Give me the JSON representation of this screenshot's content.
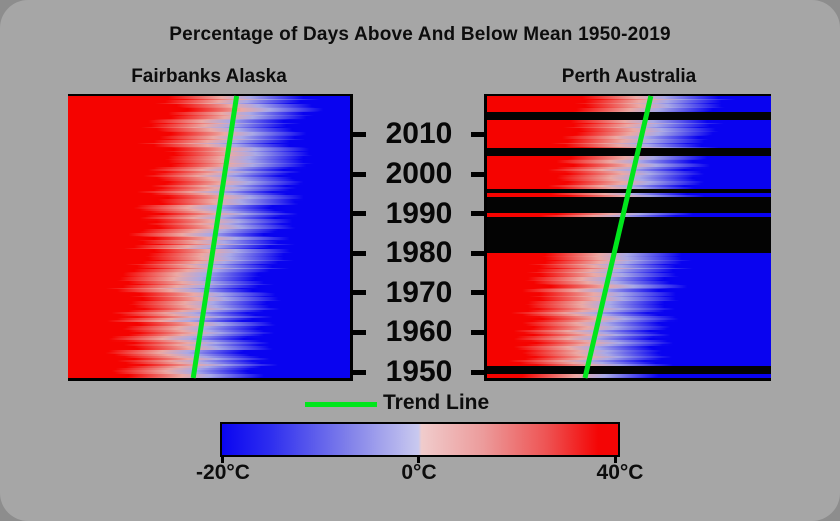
{
  "title": "Percentage of Days Above And Below Mean 1950-2019",
  "panels": [
    {
      "id": "fairbanks",
      "label": "Fairbanks Alaska"
    },
    {
      "id": "perth",
      "label": "Perth Australia"
    }
  ],
  "legend": {
    "trend_label": "Trend Line"
  },
  "colorbar": {
    "labels": [
      "-20°C",
      "0°C",
      "40°C"
    ]
  },
  "colors": {
    "hot": "#f50300",
    "cold": "#0903f0",
    "hot_pale": "#eba9a4",
    "cold_pale": "#a9a9e6",
    "missing_row": "#030303",
    "trend": "#00e61c",
    "axis": "#000000",
    "colorbar_left": "#0a05f1",
    "colorbar_right": "#f40505",
    "background": "#a6a6a6"
  },
  "chart_data": {
    "type": "heatmap",
    "title": "Percentage of Days Above And Below Mean 1950-2019",
    "y_axis": "year",
    "year_top": 2019,
    "year_bottom": 1950,
    "y_ticks": [
      2010,
      2000,
      1990,
      1980,
      1970,
      1960,
      1950
    ],
    "x_meaning": "each row: fraction of days above mean (red, left) vs below mean (blue, right); crossover value = estimated fraction of days above mean",
    "legend": {
      "trend_label": "Trend Line"
    },
    "colorbar": {
      "tick_labels": [
        "-20°C",
        "0°C",
        "40°C"
      ],
      "min": -20,
      "mid": 0,
      "max": 40,
      "unit": "°C"
    },
    "series": [
      {
        "name": "Fairbanks Alaska",
        "order": "2019_down_to_1950",
        "missing_years": [],
        "trend": {
          "top_fraction": 0.598,
          "bottom_fraction": 0.444
        },
        "values": [
          0.62,
          0.57,
          0.63,
          0.66,
          0.61,
          0.58,
          0.55,
          0.52,
          0.56,
          0.6,
          0.58,
          0.52,
          0.57,
          0.6,
          0.62,
          0.59,
          0.61,
          0.58,
          0.55,
          0.53,
          0.56,
          0.59,
          0.55,
          0.52,
          0.56,
          0.58,
          0.57,
          0.48,
          0.51,
          0.55,
          0.52,
          0.54,
          0.56,
          0.5,
          0.47,
          0.52,
          0.53,
          0.46,
          0.55,
          0.52,
          0.54,
          0.48,
          0.51,
          0.46,
          0.44,
          0.42,
          0.47,
          0.41,
          0.44,
          0.48,
          0.51,
          0.46,
          0.49,
          0.43,
          0.45,
          0.4,
          0.49,
          0.44,
          0.47,
          0.43,
          0.41,
          0.46,
          0.48,
          0.38,
          0.42,
          0.45,
          0.47,
          0.43,
          0.4,
          0.45
        ]
      },
      {
        "name": "Perth Australia",
        "order": "2019_down_to_1950",
        "missing_years": [
          2015,
          2014,
          2006,
          2005,
          1996,
          1994,
          1993,
          1992,
          1991,
          1989,
          1988,
          1987,
          1986,
          1985,
          1984,
          1983,
          1982,
          1981,
          1952,
          1951
        ],
        "trend": {
          "top_fraction": 0.577,
          "bottom_fraction": 0.345
        },
        "values": [
          0.6,
          0.57,
          0.59,
          0.55,
          null,
          null,
          0.56,
          0.53,
          0.57,
          0.55,
          0.52,
          0.5,
          0.54,
          null,
          null,
          0.53,
          0.5,
          0.52,
          0.48,
          0.51,
          0.49,
          0.52,
          0.47,
          null,
          0.49,
          null,
          null,
          null,
          null,
          0.46,
          null,
          null,
          null,
          null,
          null,
          null,
          null,
          null,
          null,
          0.44,
          0.46,
          0.42,
          0.45,
          0.4,
          0.43,
          0.38,
          0.42,
          0.44,
          0.39,
          0.41,
          0.43,
          0.38,
          0.4,
          0.36,
          0.39,
          0.42,
          0.37,
          0.4,
          0.35,
          0.38,
          0.36,
          0.4,
          0.34,
          0.37,
          0.39,
          0.35,
          0.38,
          null,
          null,
          0.36
        ]
      }
    ]
  }
}
